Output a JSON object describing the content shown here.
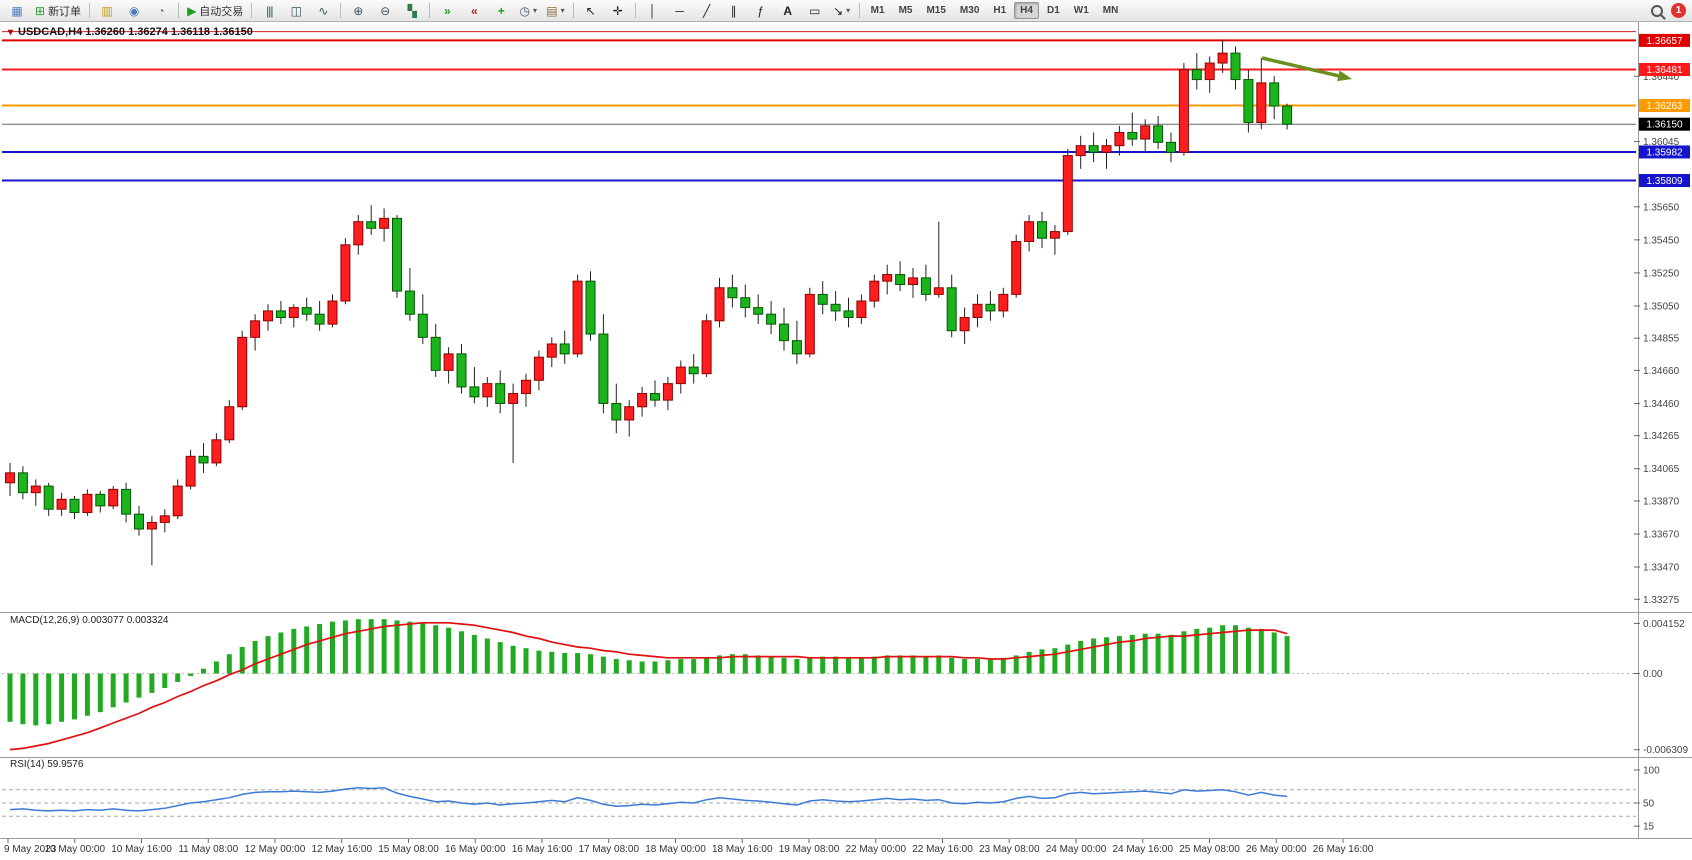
{
  "toolbar": {
    "new_order_label": "新订单",
    "auto_trading_label": "自动交易",
    "timeframes": [
      "M1",
      "M5",
      "M15",
      "M30",
      "H1",
      "H4",
      "D1",
      "W1",
      "MN"
    ],
    "active_timeframe": "H4",
    "notification_count": "1"
  },
  "chart_data": [
    {
      "type": "candlestick",
      "symbol": "USDCAD",
      "timeframe": "H4",
      "title_text": "USDCAD,H4 1.36260 1.36274 1.36118 1.36150",
      "current_ohlc": {
        "open": "1.36260",
        "high": "1.36274",
        "low": "1.36118",
        "close": "1.36150"
      },
      "up_color": "#fd1f1f",
      "down_color": "#1cb41c",
      "ylim": [
        1.3321,
        1.3672
      ],
      "y_ticks": [
        "1.36440",
        "1.36045",
        "1.35650",
        "1.35450",
        "1.35250",
        "1.35050",
        "1.34855",
        "1.34660",
        "1.34460",
        "1.34265",
        "1.34065",
        "1.33870",
        "1.33670",
        "1.33470",
        "1.33275"
      ],
      "x_labels": [
        "9 May 2023",
        "10 May 00:00",
        "10 May 16:00",
        "11 May 08:00",
        "12 May 00:00",
        "12 May 16:00",
        "15 May 08:00",
        "16 May 00:00",
        "16 May 16:00",
        "17 May 08:00",
        "18 May 00:00",
        "18 May 16:00",
        "19 May 08:00",
        "22 May 00:00",
        "22 May 16:00",
        "23 May 08:00",
        "24 May 00:00",
        "24 May 16:00",
        "25 May 08:00",
        "26 May 00:00",
        "26 May 16:00"
      ],
      "levels": [
        {
          "price": 1.3671,
          "label": "",
          "color": "#cc2222",
          "width": 1
        },
        {
          "price": 1.36657,
          "label": "1.36657",
          "color": "#e00000",
          "width": 2
        },
        {
          "price": 1.36481,
          "label": "1.36481",
          "color": "#ff1a1a",
          "width": 2
        },
        {
          "price": 1.36263,
          "label": "1.36263",
          "color": "#ff9a00",
          "width": 2
        },
        {
          "price": 1.3615,
          "label": "1.36150",
          "color": "#666666",
          "label_bg": "#000000",
          "width": 1
        },
        {
          "price": 1.35982,
          "label": "1.35982",
          "color": "#1414cc",
          "width": 2
        },
        {
          "price": 1.35809,
          "label": "1.35809",
          "color": "#1414cc",
          "width": 2
        }
      ],
      "annotations": [
        {
          "type": "arrow",
          "direction": "down-right",
          "color": "#6a8f1f"
        }
      ],
      "ohlc": [
        [
          1.3398,
          1.341,
          1.339,
          1.3404
        ],
        [
          1.3404,
          1.3408,
          1.3388,
          1.3392
        ],
        [
          1.3392,
          1.34,
          1.3384,
          1.3396
        ],
        [
          1.3396,
          1.3398,
          1.3378,
          1.3382
        ],
        [
          1.3382,
          1.3392,
          1.3378,
          1.3388
        ],
        [
          1.3388,
          1.339,
          1.3376,
          1.338
        ],
        [
          1.338,
          1.3394,
          1.3378,
          1.3391
        ],
        [
          1.3391,
          1.3393,
          1.338,
          1.3384
        ],
        [
          1.3384,
          1.3396,
          1.3382,
          1.3394
        ],
        [
          1.3394,
          1.3398,
          1.3374,
          1.3379
        ],
        [
          1.3379,
          1.3384,
          1.3366,
          1.337
        ],
        [
          1.337,
          1.3378,
          1.3348,
          1.3374
        ],
        [
          1.3374,
          1.3382,
          1.3368,
          1.3378
        ],
        [
          1.3378,
          1.34,
          1.3376,
          1.3396
        ],
        [
          1.3396,
          1.3418,
          1.3394,
          1.3414
        ],
        [
          1.3414,
          1.3422,
          1.3404,
          1.341
        ],
        [
          1.341,
          1.3428,
          1.3408,
          1.3424
        ],
        [
          1.3424,
          1.3448,
          1.3422,
          1.3444
        ],
        [
          1.3444,
          1.349,
          1.3442,
          1.3486
        ],
        [
          1.3486,
          1.35,
          1.3478,
          1.3496
        ],
        [
          1.3496,
          1.3506,
          1.349,
          1.3502
        ],
        [
          1.3502,
          1.3508,
          1.3494,
          1.3498
        ],
        [
          1.3498,
          1.3506,
          1.3492,
          1.3504
        ],
        [
          1.3504,
          1.351,
          1.3496,
          1.35
        ],
        [
          1.35,
          1.3508,
          1.349,
          1.3494
        ],
        [
          1.3494,
          1.3512,
          1.3492,
          1.3508
        ],
        [
          1.3508,
          1.3546,
          1.3506,
          1.3542
        ],
        [
          1.3542,
          1.356,
          1.3536,
          1.3556
        ],
        [
          1.3556,
          1.3566,
          1.3548,
          1.3552
        ],
        [
          1.3552,
          1.3564,
          1.3544,
          1.3558
        ],
        [
          1.3558,
          1.356,
          1.351,
          1.3514
        ],
        [
          1.3514,
          1.3528,
          1.3496,
          1.35
        ],
        [
          1.35,
          1.3512,
          1.3482,
          1.3486
        ],
        [
          1.3486,
          1.3494,
          1.3462,
          1.3466
        ],
        [
          1.3466,
          1.348,
          1.3458,
          1.3476
        ],
        [
          1.3476,
          1.3482,
          1.3452,
          1.3456
        ],
        [
          1.3456,
          1.3468,
          1.3446,
          1.345
        ],
        [
          1.345,
          1.3462,
          1.3444,
          1.3458
        ],
        [
          1.3458,
          1.3466,
          1.344,
          1.3446
        ],
        [
          1.3446,
          1.3458,
          1.341,
          1.3452
        ],
        [
          1.3452,
          1.3464,
          1.3444,
          1.346
        ],
        [
          1.346,
          1.3478,
          1.3454,
          1.3474
        ],
        [
          1.3474,
          1.3486,
          1.3468,
          1.3482
        ],
        [
          1.3482,
          1.349,
          1.347,
          1.3476
        ],
        [
          1.3476,
          1.3524,
          1.3474,
          1.352
        ],
        [
          1.352,
          1.3526,
          1.3484,
          1.3488
        ],
        [
          1.3488,
          1.35,
          1.344,
          1.3446
        ],
        [
          1.3446,
          1.3458,
          1.3428,
          1.3436
        ],
        [
          1.3436,
          1.3448,
          1.3426,
          1.3444
        ],
        [
          1.3444,
          1.3456,
          1.3438,
          1.3452
        ],
        [
          1.3452,
          1.346,
          1.3444,
          1.3448
        ],
        [
          1.3448,
          1.3462,
          1.3442,
          1.3458
        ],
        [
          1.3458,
          1.3472,
          1.3452,
          1.3468
        ],
        [
          1.3468,
          1.3476,
          1.3458,
          1.3464
        ],
        [
          1.3464,
          1.35,
          1.3462,
          1.3496
        ],
        [
          1.3496,
          1.3522,
          1.3492,
          1.3516
        ],
        [
          1.3516,
          1.3524,
          1.3504,
          1.351
        ],
        [
          1.351,
          1.3518,
          1.3498,
          1.3504
        ],
        [
          1.3504,
          1.3512,
          1.3494,
          1.35
        ],
        [
          1.35,
          1.3508,
          1.3488,
          1.3494
        ],
        [
          1.3494,
          1.3504,
          1.3478,
          1.3484
        ],
        [
          1.3484,
          1.3496,
          1.347,
          1.3476
        ],
        [
          1.3476,
          1.3516,
          1.3474,
          1.3512
        ],
        [
          1.3512,
          1.352,
          1.35,
          1.3506
        ],
        [
          1.3506,
          1.3514,
          1.3496,
          1.3502
        ],
        [
          1.3502,
          1.351,
          1.3492,
          1.3498
        ],
        [
          1.3498,
          1.3512,
          1.3494,
          1.3508
        ],
        [
          1.3508,
          1.3524,
          1.3504,
          1.352
        ],
        [
          1.352,
          1.353,
          1.3512,
          1.3524
        ],
        [
          1.3524,
          1.3532,
          1.3514,
          1.3518
        ],
        [
          1.3518,
          1.3528,
          1.351,
          1.3522
        ],
        [
          1.3522,
          1.353,
          1.3508,
          1.3512
        ],
        [
          1.3512,
          1.3556,
          1.351,
          1.3516
        ],
        [
          1.3516,
          1.3524,
          1.3486,
          1.349
        ],
        [
          1.349,
          1.3504,
          1.3482,
          1.3498
        ],
        [
          1.3498,
          1.3512,
          1.3492,
          1.3506
        ],
        [
          1.3506,
          1.3514,
          1.3496,
          1.3502
        ],
        [
          1.3502,
          1.3516,
          1.3498,
          1.3512
        ],
        [
          1.3512,
          1.3548,
          1.351,
          1.3544
        ],
        [
          1.3544,
          1.356,
          1.3538,
          1.3556
        ],
        [
          1.3556,
          1.3562,
          1.354,
          1.3546
        ],
        [
          1.3546,
          1.3554,
          1.3536,
          1.355
        ],
        [
          1.355,
          1.36,
          1.3548,
          1.3596
        ],
        [
          1.3596,
          1.3608,
          1.3588,
          1.3602
        ],
        [
          1.3602,
          1.361,
          1.3592,
          1.3598
        ],
        [
          1.3598,
          1.3606,
          1.3588,
          1.3602
        ],
        [
          1.3602,
          1.3614,
          1.3596,
          1.361
        ],
        [
          1.361,
          1.3622,
          1.3602,
          1.3606
        ],
        [
          1.3606,
          1.3618,
          1.3598,
          1.3614
        ],
        [
          1.3614,
          1.362,
          1.36,
          1.3604
        ],
        [
          1.3604,
          1.361,
          1.3592,
          1.3598
        ],
        [
          1.3598,
          1.3652,
          1.3596,
          1.3648
        ],
        [
          1.3648,
          1.3658,
          1.3636,
          1.3642
        ],
        [
          1.3642,
          1.3656,
          1.3634,
          1.3652
        ],
        [
          1.3652,
          1.3666,
          1.3646,
          1.3658
        ],
        [
          1.3658,
          1.3662,
          1.3636,
          1.3642
        ],
        [
          1.3642,
          1.3648,
          1.361,
          1.3616
        ],
        [
          1.3616,
          1.3655,
          1.3612,
          1.364
        ],
        [
          1.364,
          1.3644,
          1.3618,
          1.3626
        ],
        [
          1.3626,
          1.36274,
          1.36118,
          1.3615
        ]
      ]
    },
    {
      "type": "bar",
      "name": "MACD",
      "label": "MACD(12,26,9) 0.003077 0.003324",
      "params": "12,26,9",
      "macd_value": "0.003077",
      "signal_value": "0.003324",
      "histogram_color": "#22aa22",
      "signal_color": "#e01010",
      "ylim": [
        -0.0065,
        0.0046
      ],
      "y_ticks": [
        "0.004152",
        "0.00",
        "-0.006309"
      ],
      "histogram": [
        -0.004,
        -0.0042,
        -0.0043,
        -0.0042,
        -0.004,
        -0.0038,
        -0.0035,
        -0.0032,
        -0.0028,
        -0.0024,
        -0.002,
        -0.0016,
        -0.0012,
        -0.0007,
        -0.0002,
        0.0004,
        0.001,
        0.0016,
        0.0022,
        0.0027,
        0.0031,
        0.0034,
        0.0037,
        0.0039,
        0.0041,
        0.0043,
        0.0044,
        0.0045,
        0.0045,
        0.0045,
        0.0044,
        0.0043,
        0.0042,
        0.004,
        0.0038,
        0.0035,
        0.0032,
        0.0029,
        0.0026,
        0.0023,
        0.0021,
        0.0019,
        0.0018,
        0.0017,
        0.0017,
        0.0016,
        0.0014,
        0.0012,
        0.0011,
        0.001,
        0.001,
        0.0011,
        0.0012,
        0.0012,
        0.0013,
        0.0015,
        0.0016,
        0.0016,
        0.0015,
        0.0014,
        0.0013,
        0.0012,
        0.0013,
        0.0014,
        0.0014,
        0.0013,
        0.0013,
        0.0014,
        0.0015,
        0.0015,
        0.0015,
        0.0014,
        0.0015,
        0.0013,
        0.0012,
        0.0012,
        0.0012,
        0.0013,
        0.0015,
        0.0018,
        0.002,
        0.0021,
        0.0024,
        0.0027,
        0.0029,
        0.003,
        0.0031,
        0.0032,
        0.0033,
        0.0033,
        0.0032,
        0.0035,
        0.0037,
        0.0038,
        0.004,
        0.004,
        0.0038,
        0.0037,
        0.0034,
        0.0031
      ],
      "signal": [
        -0.0063,
        -0.0062,
        -0.006,
        -0.0058,
        -0.0055,
        -0.0052,
        -0.0049,
        -0.0045,
        -0.0041,
        -0.0037,
        -0.0033,
        -0.0028,
        -0.0024,
        -0.0019,
        -0.0015,
        -0.001,
        -0.0006,
        -0.0001,
        0.0003,
        0.0008,
        0.0012,
        0.0016,
        0.002,
        0.0024,
        0.0027,
        0.003,
        0.0033,
        0.0035,
        0.0037,
        0.0039,
        0.004,
        0.0041,
        0.0042,
        0.0042,
        0.0042,
        0.0041,
        0.004,
        0.0038,
        0.0036,
        0.0034,
        0.0031,
        0.0029,
        0.0026,
        0.0024,
        0.0022,
        0.0021,
        0.0019,
        0.0018,
        0.0016,
        0.0015,
        0.0014,
        0.0013,
        0.0013,
        0.0013,
        0.0013,
        0.0013,
        0.0014,
        0.0014,
        0.0014,
        0.0014,
        0.0014,
        0.0014,
        0.0013,
        0.0013,
        0.0013,
        0.0013,
        0.0013,
        0.0013,
        0.0014,
        0.0014,
        0.0014,
        0.0014,
        0.0014,
        0.0014,
        0.0013,
        0.0013,
        0.0012,
        0.0012,
        0.0013,
        0.0014,
        0.0015,
        0.0016,
        0.0018,
        0.002,
        0.0022,
        0.0024,
        0.0026,
        0.0027,
        0.0029,
        0.003,
        0.0031,
        0.0031,
        0.0032,
        0.0033,
        0.0034,
        0.0035,
        0.0036,
        0.0036,
        0.0036,
        0.0033
      ]
    },
    {
      "type": "line",
      "name": "RSI",
      "label": "RSI(14) 59.9576",
      "period": "14",
      "value": "59.9576",
      "line_color": "#3b7bd4",
      "ylim": [
        0,
        100
      ],
      "y_ticks": [
        "100",
        "50",
        "15"
      ],
      "levels": [
        70,
        50,
        30
      ],
      "values": [
        40,
        41,
        39,
        38,
        39,
        38,
        40,
        39,
        41,
        39,
        38,
        40,
        42,
        46,
        50,
        52,
        55,
        58,
        63,
        66,
        67,
        67,
        68,
        67,
        66,
        68,
        71,
        73,
        72,
        73,
        65,
        60,
        56,
        52,
        53,
        50,
        48,
        50,
        47,
        49,
        50,
        52,
        54,
        52,
        58,
        54,
        48,
        45,
        46,
        48,
        47,
        49,
        51,
        50,
        55,
        58,
        56,
        54,
        53,
        51,
        49,
        47,
        53,
        55,
        53,
        52,
        53,
        55,
        57,
        55,
        56,
        54,
        55,
        50,
        49,
        51,
        50,
        52,
        57,
        60,
        57,
        58,
        64,
        66,
        64,
        65,
        66,
        67,
        68,
        66,
        64,
        70,
        68,
        69,
        70,
        67,
        62,
        66,
        62,
        60
      ]
    }
  ]
}
